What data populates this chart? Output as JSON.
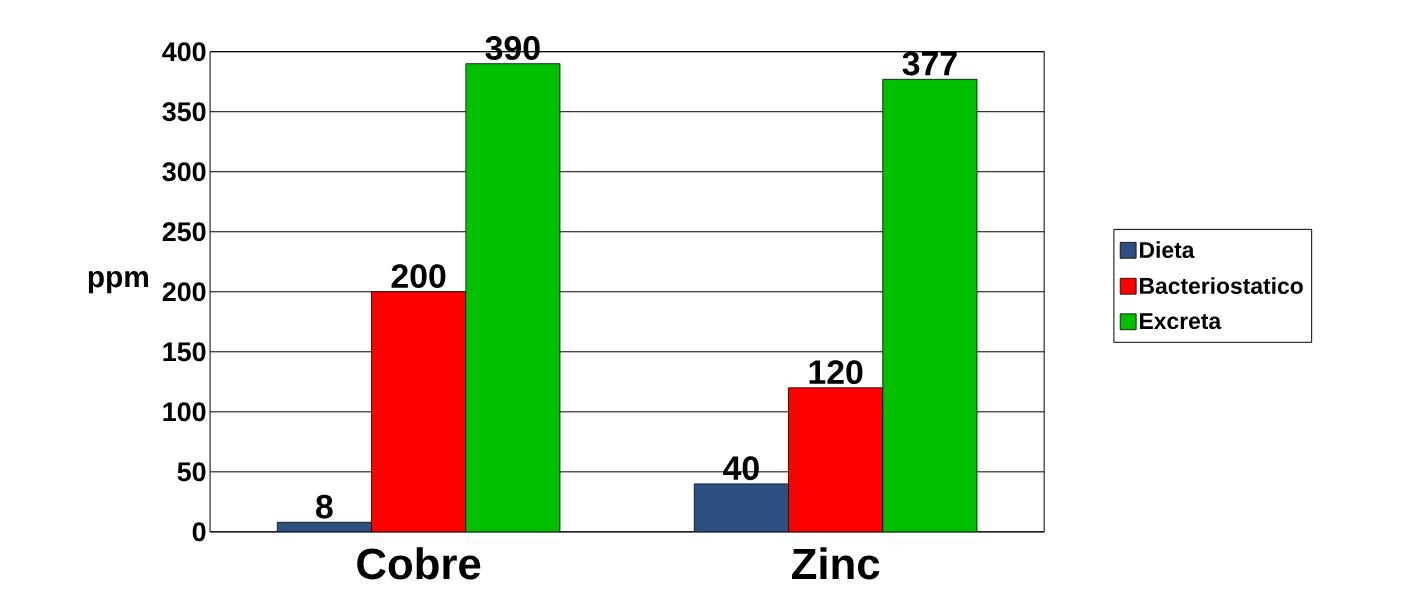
{
  "chart_data": {
    "type": "bar",
    "ylabel": "ppm",
    "categories": [
      "Cobre",
      "Zinc"
    ],
    "series": [
      {
        "name": "Dieta",
        "color": "#2e5080",
        "values": [
          8,
          40
        ]
      },
      {
        "name": "Bacteriostatico",
        "color": "#ff0000",
        "values": [
          200,
          120
        ]
      },
      {
        "name": "Excreta",
        "color": "#00c000",
        "values": [
          390,
          377
        ]
      }
    ],
    "ylim": [
      0,
      400
    ],
    "yticks": [
      0,
      50,
      100,
      150,
      200,
      250,
      300,
      350,
      400
    ],
    "grid": "y",
    "legend": "right",
    "data_labels": true
  }
}
